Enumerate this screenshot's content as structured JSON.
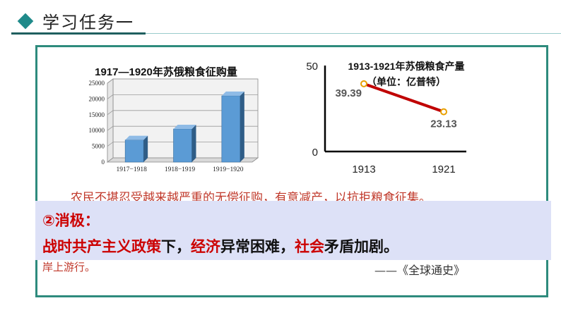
{
  "header": {
    "title": "学习任务一"
  },
  "chart_data": [
    {
      "type": "bar",
      "title": "1917—1920年苏俄粮食征购量",
      "categories": [
        "1917−1918",
        "1918−1919",
        "1919−1920"
      ],
      "values": [
        7000,
        10500,
        21000
      ],
      "ylim": [
        0,
        25000
      ],
      "yticks": [
        0,
        5000,
        10000,
        15000,
        20000,
        25000
      ],
      "grid": true,
      "color": "#5b9bd5"
    },
    {
      "type": "line",
      "title": "1913-1921年苏俄粮食产量",
      "subtitle": "（单位：亿普特）",
      "x": [
        "1913",
        "1921"
      ],
      "values": [
        39.39,
        23.13
      ],
      "ylim": [
        0,
        50
      ],
      "yticks": [
        "0",
        "50"
      ],
      "color": "#c00000"
    }
  ],
  "background_text": {
    "line1": "农民不堪忍受越来越严重的无偿征购，有意减产，以抗拒粮食征集。",
    "line2": "岸上游行。",
    "source": "——《全球通史》"
  },
  "overlay": {
    "heading": "②消极：",
    "body": {
      "p1": "战时共产主义政策",
      "p2": "下，",
      "p3": "经济",
      "p4": "异常困难，",
      "p5": "社会",
      "p6": "矛盾加剧。"
    }
  }
}
